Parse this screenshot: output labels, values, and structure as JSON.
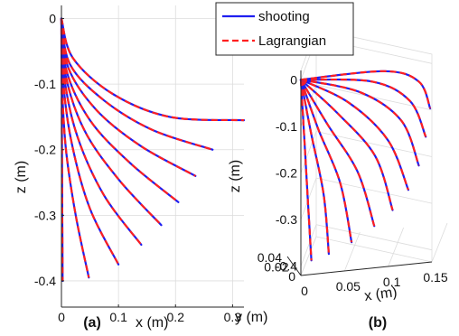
{
  "colors": {
    "shooting": "#1f1ff0",
    "lagrangian": "#ff1f1f",
    "grid": "#dcdcdc",
    "axis": "#262626"
  },
  "legend": {
    "entries": [
      {
        "label": "shooting",
        "style": "solid",
        "color": "#1f1ff0"
      },
      {
        "label": "Lagrangian",
        "style": "dashed",
        "color": "#ff1f1f"
      }
    ],
    "placement": "top-center"
  },
  "chart_data": [
    {
      "type": "line",
      "panel_label": "(a)",
      "xlabel": "x (m)",
      "ylabel": "z (m)",
      "xlim": [
        0,
        0.32
      ],
      "ylim": [
        -0.44,
        0.02
      ],
      "xticks": [
        0,
        0.1,
        0.2,
        0.3
      ],
      "xtick_labels": [
        "0",
        "0.1",
        "0.2",
        "0.3"
      ],
      "yticks": [
        0,
        -0.1,
        -0.2,
        -0.3,
        -0.4
      ],
      "ytick_labels": [
        "0",
        "-0.1",
        "-0.2",
        "-0.3",
        "-0.4"
      ],
      "grid": true,
      "series_note": "each curve drawn by both methods (shooting solid, Lagrangian dashed) overlapping",
      "curves": [
        {
          "x": [
            0,
            0.0005,
            0.001,
            0.0015,
            0.002
          ],
          "z": [
            0,
            -0.1,
            -0.2,
            -0.3,
            -0.4
          ]
        },
        {
          "x": [
            0,
            0.001,
            0.008,
            0.025,
            0.048
          ],
          "z": [
            0,
            -0.1,
            -0.2,
            -0.3,
            -0.395
          ]
        },
        {
          "x": [
            0,
            0.003,
            0.018,
            0.05,
            0.1
          ],
          "z": [
            0,
            -0.095,
            -0.19,
            -0.29,
            -0.375
          ]
        },
        {
          "x": [
            0,
            0.005,
            0.028,
            0.075,
            0.14
          ],
          "z": [
            0,
            -0.09,
            -0.18,
            -0.27,
            -0.345
          ]
        },
        {
          "x": [
            0,
            0.007,
            0.04,
            0.1,
            0.175
          ],
          "z": [
            0,
            -0.085,
            -0.17,
            -0.245,
            -0.315
          ]
        },
        {
          "x": [
            0,
            0.009,
            0.05,
            0.12,
            0.205
          ],
          "z": [
            0,
            -0.08,
            -0.155,
            -0.22,
            -0.28
          ]
        },
        {
          "x": [
            0,
            0.012,
            0.062,
            0.14,
            0.235
          ],
          "z": [
            0,
            -0.075,
            -0.14,
            -0.195,
            -0.24
          ]
        },
        {
          "x": [
            0,
            0.015,
            0.075,
            0.16,
            0.265
          ],
          "z": [
            0,
            -0.07,
            -0.125,
            -0.17,
            -0.2
          ]
        },
        {
          "x": [
            0,
            0.02,
            0.09,
            0.19,
            0.32
          ],
          "z": [
            0,
            -0.06,
            -0.115,
            -0.15,
            -0.155
          ]
        }
      ]
    },
    {
      "type": "line",
      "panel_label": "(b)",
      "xlabel": "x (m)",
      "ylabel": "y (m)",
      "zlabel": "z (m)",
      "xlim": [
        0,
        0.15
      ],
      "ylim": [
        0,
        0.05
      ],
      "zlim": [
        -0.42,
        0.02
      ],
      "xticks": [
        0,
        0.05,
        0.1,
        0.15
      ],
      "xtick_labels": [
        "0",
        "0.05",
        "0.1",
        "0.15"
      ],
      "yticks": [
        0,
        0.02,
        0.04
      ],
      "ytick_labels": [
        "0",
        "0.02",
        "0.04"
      ],
      "zticks": [
        0,
        -0.1,
        -0.2,
        -0.3,
        -0.4
      ],
      "ztick_labels": [
        "0",
        "-0.1",
        "-0.2",
        "-0.3",
        "-0.4"
      ],
      "grid": true,
      "view": "3d",
      "series_note": "each curve drawn by both methods (shooting solid, Lagrangian dashed) overlapping",
      "curves_xz": [
        {
          "x": [
            0,
            0.004,
            0.008,
            0.012
          ],
          "z": [
            0,
            -0.13,
            -0.26,
            -0.39
          ]
        },
        {
          "x": [
            0,
            0.012,
            0.026,
            0.032
          ],
          "z": [
            0,
            -0.12,
            -0.25,
            -0.38
          ]
        },
        {
          "x": [
            0,
            0.02,
            0.045,
            0.058
          ],
          "z": [
            0,
            -0.11,
            -0.23,
            -0.36
          ]
        },
        {
          "x": [
            0,
            0.03,
            0.065,
            0.084
          ],
          "z": [
            0,
            -0.1,
            -0.21,
            -0.33
          ]
        },
        {
          "x": [
            0,
            0.042,
            0.085,
            0.105
          ],
          "z": [
            0,
            -0.08,
            -0.18,
            -0.3
          ]
        },
        {
          "x": [
            0,
            0.055,
            0.1,
            0.123
          ],
          "z": [
            0,
            -0.06,
            -0.15,
            -0.26
          ]
        },
        {
          "x": [
            0,
            0.068,
            0.115,
            0.135
          ],
          "z": [
            0,
            -0.04,
            -0.11,
            -0.21
          ]
        },
        {
          "x": [
            0,
            0.082,
            0.125,
            0.143
          ],
          "z": [
            0,
            -0.02,
            -0.07,
            -0.15
          ]
        },
        {
          "x": [
            0,
            0.095,
            0.135,
            0.148
          ],
          "z": [
            0,
            0.0,
            -0.03,
            -0.09
          ]
        }
      ]
    }
  ]
}
